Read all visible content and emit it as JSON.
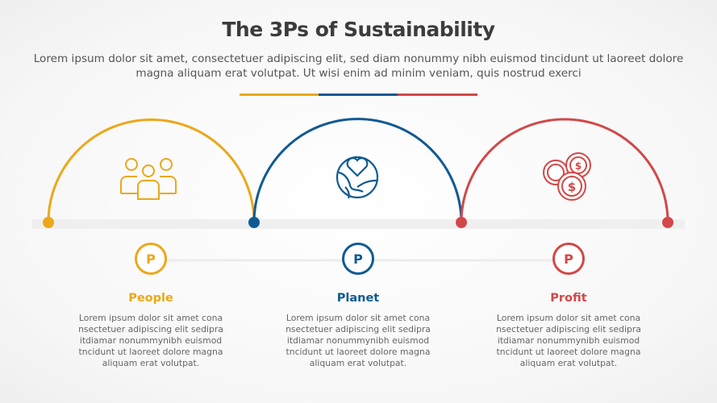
{
  "title": "The 3Ps of Sustainability",
  "subtitle": "Lorem ipsum dolor sit amet, consectetuer adipiscing elit, sed diam nonummy nibh euismod tincidunt ut laoreet dolore magna aliquam erat volutpat. Ut wisi enim ad minim veniam, quis nostrud exerci",
  "colors": {
    "people": "#eaa81a",
    "planet": "#0f5a92",
    "profit": "#d24848"
  },
  "items": [
    {
      "letter": "P",
      "title": "People",
      "icon": "people-group-icon",
      "desc": "Lorem ipsum dolor sit amet cona nsectetuer adipiscing elit sedipra itdiamar nonummynibh euismod tncidunt ut laoreet dolore magna aliquam erat volutpat."
    },
    {
      "letter": "P",
      "title": "Planet",
      "icon": "earth-heart-icon",
      "desc": "Lorem ipsum dolor sit amet cona nsectetuer adipiscing elit sedipra itdiamar nonummynibh euismod tncidunt ut laoreet dolore magna aliquam erat volutpat."
    },
    {
      "letter": "P",
      "title": "Profit",
      "icon": "coins-dollar-icon",
      "desc": "Lorem ipsum dolor sit amet cona nsectetuer adipiscing elit sedipra itdiamar nonummynibh euismod tncidunt ut laoreet dolore magna aliquam erat volutpat."
    }
  ]
}
